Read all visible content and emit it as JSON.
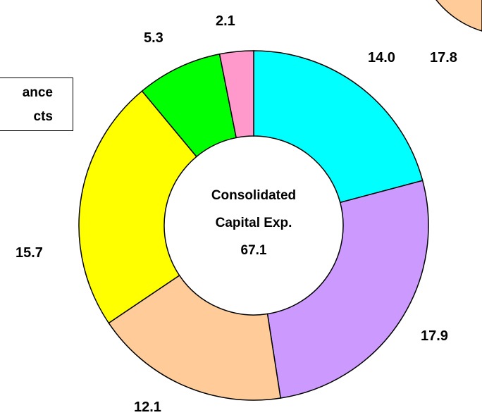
{
  "chart_data": {
    "type": "pie",
    "title": "",
    "center_label": [
      "Consolidated",
      "Capital Exp.",
      "67.1"
    ],
    "values": [
      14.0,
      17.9,
      12.1,
      15.7,
      5.3,
      2.1
    ],
    "colors": [
      "#00FFFF",
      "#CC99FF",
      "#FFCC99",
      "#FFFF00",
      "#00FF00",
      "#FF99CC"
    ],
    "value_labels": [
      "14.0",
      "17.9",
      "12.1",
      "15.7",
      "5.3",
      "2.1"
    ],
    "neighbor_chart_value": "17.8",
    "neighbor_chart_color": "#FFCC99",
    "legend_fragment": [
      "ance",
      "cts"
    ]
  }
}
